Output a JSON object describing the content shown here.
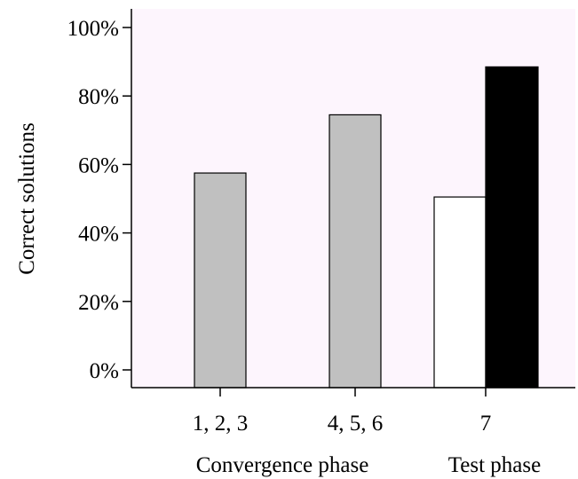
{
  "chart_data": {
    "type": "bar",
    "ylabel": "Correct solutions",
    "ylim": [
      0,
      100
    ],
    "yticks": [
      0,
      20,
      40,
      60,
      80,
      100
    ],
    "ytick_labels": [
      "0%",
      "20%",
      "40%",
      "60%",
      "80%",
      "100%"
    ],
    "categories": [
      "1, 2, 3",
      "4, 5, 6",
      "7"
    ],
    "bars": [
      {
        "category": "1, 2, 3",
        "value": 57.5,
        "color": "#c0c0c0"
      },
      {
        "category": "4, 5, 6",
        "value": 74.5,
        "color": "#c0c0c0"
      },
      {
        "category": "7",
        "value": 50.5,
        "color": "#ffffff"
      },
      {
        "category": "7",
        "value": 88.5,
        "color": "#000000"
      }
    ],
    "phase_labels": {
      "convergence": "Convergence phase",
      "test": "Test phase"
    },
    "plot_background": "#fdf5fd",
    "grid": false,
    "legend": "none"
  }
}
